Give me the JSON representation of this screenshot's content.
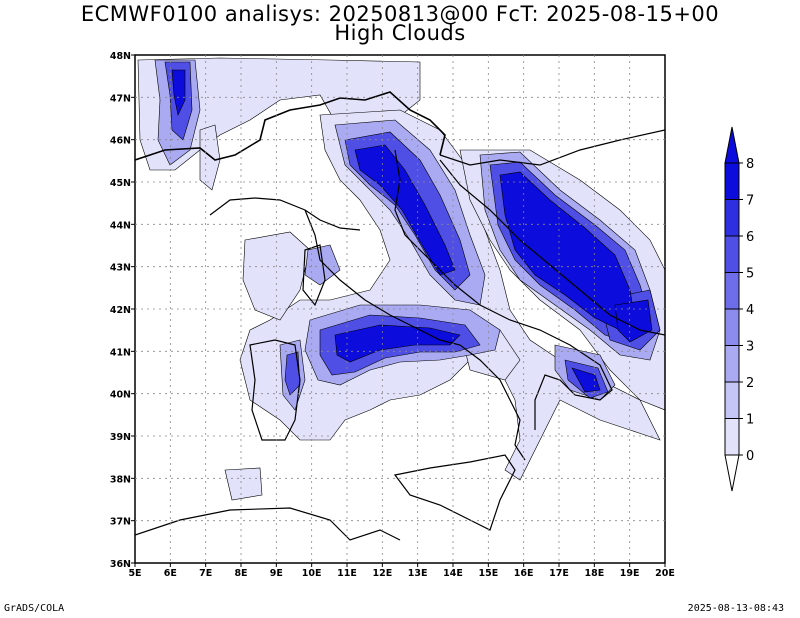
{
  "title": {
    "line1": "ECMWF0100 analisys: 20250813@00 FcT: 2025-08-15+00",
    "line2": "High Clouds"
  },
  "map": {
    "region": "Italy",
    "lon_labels": [
      "5E",
      "6E",
      "7E",
      "8E",
      "9E",
      "10E",
      "11E",
      "12E",
      "13E",
      "14E",
      "15E",
      "16E",
      "17E",
      "18E",
      "19E",
      "20E"
    ],
    "lat_labels": [
      "48N",
      "47N",
      "46N",
      "45N",
      "44N",
      "43N",
      "42N",
      "41N",
      "40N",
      "39N",
      "38N",
      "37N",
      "36N"
    ],
    "lon_range": [
      5,
      20
    ],
    "lat_range": [
      36,
      48
    ],
    "grid": true,
    "grid_style": "dotted"
  },
  "colorbar": {
    "levels": [
      "0",
      "1",
      "2",
      "3",
      "4",
      "5",
      "6",
      "7",
      "8"
    ],
    "colors": [
      "#ffffff",
      "#e2e2fa",
      "#c6c6f6",
      "#aaaaf2",
      "#8c8cee",
      "#6e6eea",
      "#4f4fe6",
      "#2f2fe2",
      "#0c0cdc"
    ]
  },
  "footer": {
    "left": "GrADS/COLA",
    "right": "2025-08-13-08:43"
  }
}
